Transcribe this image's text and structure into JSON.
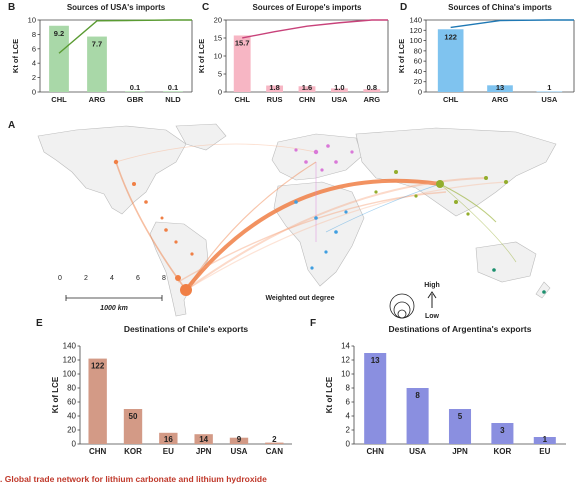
{
  "figure_caption": ". Global trade network for lithium carbonate and lithium hydroxide",
  "chart_data": [
    {
      "panel": "B",
      "type": "bar",
      "title": "Sources of USA's imports",
      "ylabel": "Kt of LCE",
      "categories": [
        "CHL",
        "ARG",
        "GBR",
        "NLD"
      ],
      "values": [
        9.2,
        7.7,
        0.1,
        0.1
      ],
      "value_labels": [
        "9.2",
        "7.7",
        "0.1",
        "0.1"
      ],
      "yticks": [
        "0",
        "2",
        "4",
        "6",
        "8",
        "10"
      ],
      "ylim": [
        0,
        10
      ],
      "bar_color": "#a9d8a8",
      "line_color": "#5a9b32",
      "cumulative_line": true
    },
    {
      "panel": "C",
      "type": "bar",
      "title": "Sources of Europe's imports",
      "ylabel": "Kt of LCE",
      "categories": [
        "CHL",
        "RUS",
        "CHN",
        "USA",
        "ARG"
      ],
      "values": [
        15.7,
        1.8,
        1.6,
        1.0,
        0.8
      ],
      "value_labels": [
        "15.7",
        "1.8",
        "1.6",
        "1.0",
        "0.8"
      ],
      "yticks": [
        "0",
        "5",
        "10",
        "15",
        "20"
      ],
      "ylim": [
        0,
        20
      ],
      "bar_color": "#f7b6c4",
      "line_color": "#c8427a",
      "cumulative_line": true
    },
    {
      "panel": "D",
      "type": "bar",
      "title": "Sources of China's imports",
      "ylabel": "Kt of LCE",
      "categories": [
        "CHL",
        "ARG",
        "USA"
      ],
      "values": [
        122,
        13,
        1
      ],
      "value_labels": [
        "122",
        "13",
        "1"
      ],
      "yticks": [
        "0",
        "20",
        "40",
        "60",
        "80",
        "100",
        "120",
        "140"
      ],
      "ylim": [
        0,
        140
      ],
      "bar_color": "#7fc3ef",
      "line_color": "#1f78b4",
      "cumulative_line": true
    },
    {
      "panel": "E",
      "type": "bar",
      "title": "Destinations of Chile's exports",
      "ylabel": "Kt of LCE",
      "categories": [
        "CHN",
        "KOR",
        "EU",
        "JPN",
        "USA",
        "CAN"
      ],
      "values": [
        122,
        50,
        16,
        14,
        9,
        2
      ],
      "value_labels": [
        "122",
        "50",
        "16",
        "14",
        "9",
        "2"
      ],
      "yticks": [
        "0",
        "20",
        "40",
        "60",
        "80",
        "100",
        "120",
        "140"
      ],
      "ylim": [
        0,
        140
      ],
      "bar_color": "#d39a86",
      "line_color": "",
      "cumulative_line": false
    },
    {
      "panel": "F",
      "type": "bar",
      "title": "Destinations of Argentina's exports",
      "ylabel": "Kt of LCE",
      "categories": [
        "CHN",
        "USA",
        "JPN",
        "KOR",
        "EU"
      ],
      "values": [
        13,
        8,
        5,
        3,
        1
      ],
      "value_labels": [
        "13",
        "8",
        "5",
        "3",
        "1"
      ],
      "yticks": [
        "0",
        "2",
        "4",
        "6",
        "8",
        "10",
        "12",
        "14"
      ],
      "ylim": [
        0,
        14
      ],
      "bar_color": "#8a8fe0",
      "line_color": "",
      "cumulative_line": false
    }
  ],
  "map": {
    "panel": "A",
    "scale_ticks": [
      "0",
      "2",
      "4",
      "6",
      "8"
    ],
    "scale_label": "1000 km",
    "legend_title": "Weighted out degree",
    "legend_high": "High",
    "legend_low": "Low",
    "colors": {
      "americas": "#f07f45",
      "europe": "#d978d8",
      "africa": "#3f9ee0",
      "asia": "#93ad2c",
      "oceania": "#1b8f6d",
      "land": "#f1f1f1",
      "border": "#bcbcbc"
    }
  }
}
